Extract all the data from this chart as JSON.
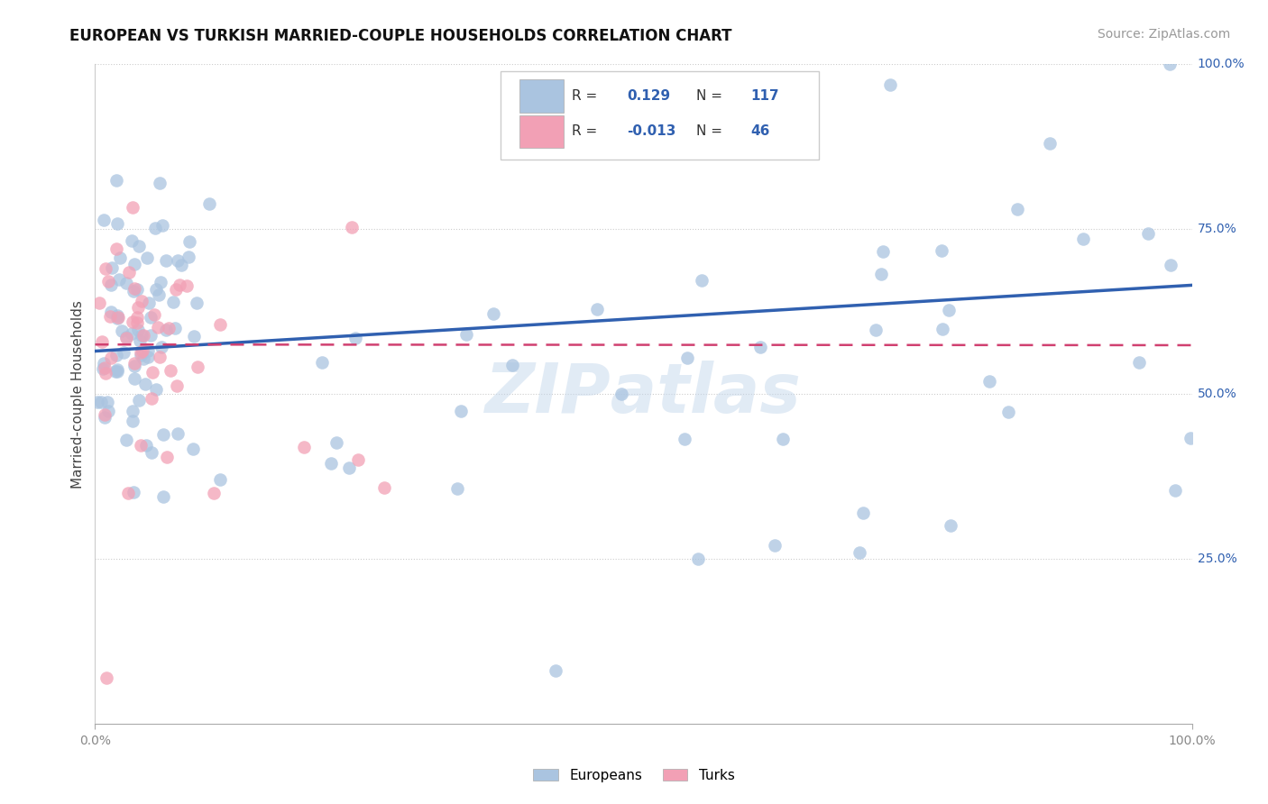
{
  "title": "EUROPEAN VS TURKISH MARRIED-COUPLE HOUSEHOLDS CORRELATION CHART",
  "source": "Source: ZipAtlas.com",
  "ylabel": "Married-couple Households",
  "xlim": [
    0,
    1
  ],
  "ylim": [
    0,
    1
  ],
  "r_european": 0.129,
  "n_european": 117,
  "r_turkish": -0.013,
  "n_turkish": 46,
  "european_color": "#aac4e0",
  "turkish_color": "#f2a0b5",
  "european_line_color": "#3060b0",
  "turkish_line_color": "#d04070",
  "background_color": "#ffffff",
  "grid_color": "#cccccc",
  "watermark_color": "#c5d8ec",
  "title_fontsize": 12,
  "source_fontsize": 10,
  "legend_text_color": "#333333",
  "legend_value_color": "#3060b0",
  "axis_tick_color": "#888888",
  "right_tick_color": "#3060b0"
}
